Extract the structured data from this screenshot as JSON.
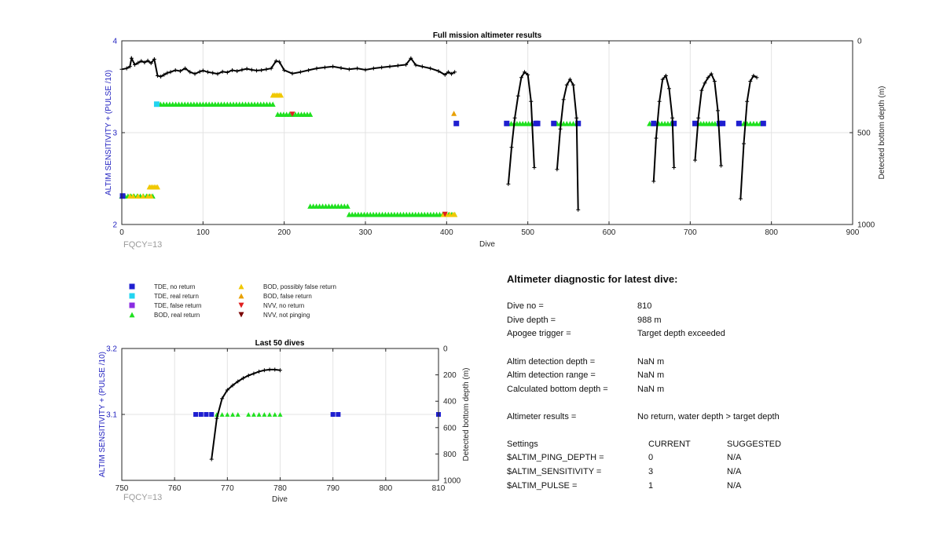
{
  "colors": {
    "tde_no_return": "#1f1fd0",
    "tde_real_return": "#22d4f0",
    "tde_false_return": "#8a2be2",
    "bod_real_return": "#1fe01f",
    "bod_possibly_false": "#f0c800",
    "bod_false": "#e8a000",
    "nvv_no_return": "#e02020",
    "nvv_not_pinging": "#7a0000",
    "depth_line": "#000000",
    "left_axis": "#1f1fbf"
  },
  "legend": [
    {
      "label": "TDE, no return",
      "marker": "square",
      "color": "#1f1fd0"
    },
    {
      "label": "TDE, real return",
      "marker": "square",
      "color": "#22d4f0"
    },
    {
      "label": "TDE, false return",
      "marker": "square",
      "color": "#8a2be2"
    },
    {
      "label": "BOD, real return",
      "marker": "triangle-up",
      "color": "#1fe01f"
    },
    {
      "label": "BOD, possibly false return",
      "marker": "triangle-up",
      "color": "#f0c800"
    },
    {
      "label": "BOD, false return",
      "marker": "triangle-up",
      "color": "#e8a000"
    },
    {
      "label": "NVV, no return",
      "marker": "triangle-down",
      "color": "#e02020"
    },
    {
      "label": "NVV, not pinging",
      "marker": "triangle-down",
      "color": "#7a0000"
    }
  ],
  "chart_data": [
    {
      "type": "scatter",
      "title": "Full mission altimeter results",
      "xlabel": "Dive",
      "ylabel": "ALTIM SENSITIVITY + (PULSE /10)",
      "y2label": "Detected bottom depth (m)",
      "xlim": [
        0,
        900
      ],
      "ylim": [
        2,
        4
      ],
      "y2lim": [
        1000,
        0
      ],
      "xticks": [
        0,
        100,
        200,
        300,
        400,
        500,
        600,
        700,
        800,
        900
      ],
      "yticks": [
        2,
        3,
        4
      ],
      "y2ticks": [
        0,
        500,
        1000
      ],
      "grid": true,
      "annotation": "FQCY=13",
      "series": [
        {
          "marker": "triangle-up",
          "color": "#1fe01f",
          "y": 3.1,
          "ranges": [
            [
              476,
              508
            ],
            [
              536,
              560
            ],
            [
              650,
              680
            ],
            [
              706,
              734
            ],
            [
              762,
              786
            ]
          ]
        },
        {
          "marker": "triangle-up",
          "color": "#1fe01f",
          "y": 3.31,
          "ranges": [
            [
              44,
              186
            ]
          ]
        },
        {
          "marker": "triangle-up",
          "color": "#1fe01f",
          "y": 3.2,
          "ranges": [
            [
              192,
              232
            ]
          ]
        },
        {
          "marker": "triangle-up",
          "color": "#1fe01f",
          "y": 2.31,
          "ranges": [
            [
              0,
              38
            ]
          ]
        },
        {
          "marker": "triangle-up",
          "color": "#1fe01f",
          "y": 2.2,
          "ranges": [
            [
              232,
              278
            ]
          ]
        },
        {
          "marker": "triangle-up",
          "color": "#1fe01f",
          "y": 2.11,
          "ranges": [
            [
              280,
              410
            ]
          ]
        },
        {
          "marker": "triangle-up",
          "color": "#f0c800",
          "y": 3.41,
          "points": [
            186,
            188,
            190,
            192,
            194,
            196
          ]
        },
        {
          "marker": "triangle-up",
          "color": "#f0c800",
          "y": 2.41,
          "points": [
            34,
            36,
            38,
            40,
            42,
            44
          ]
        },
        {
          "marker": "triangle-up",
          "color": "#f0c800",
          "y": 2.31,
          "points": [
            10,
            14,
            20,
            26,
            32,
            36
          ]
        },
        {
          "marker": "triangle-up",
          "color": "#f0c800",
          "y": 2.11,
          "points": [
            396,
            400,
            404,
            408,
            410
          ]
        },
        {
          "marker": "triangle-up",
          "color": "#e8a000",
          "y": 3.21,
          "points": [
            409
          ]
        },
        {
          "marker": "triangle-down",
          "color": "#e02020",
          "y": 3.2,
          "points": [
            210
          ]
        },
        {
          "marker": "triangle-down",
          "color": "#e02020",
          "y": 2.11,
          "points": [
            398
          ]
        },
        {
          "marker": "square",
          "color": "#22d4f0",
          "y": 3.31,
          "points": [
            43
          ]
        },
        {
          "marker": "square",
          "color": "#1f1fd0",
          "y": 3.1,
          "points": [
            412,
            474,
            510,
            512,
            532,
            562,
            655,
            680,
            706,
            736,
            740,
            760,
            790
          ]
        },
        {
          "marker": "square",
          "color": "#1f1fd0",
          "y": 2.31,
          "points": [
            1
          ]
        }
      ],
      "depth_line": {
        "x": [
          0,
          6,
          10,
          12,
          16,
          20,
          24,
          28,
          32,
          36,
          40,
          44,
          48,
          52,
          56,
          60,
          66,
          72,
          78,
          84,
          90,
          96,
          100,
          106,
          112,
          118,
          124,
          130,
          136,
          142,
          148,
          154,
          160,
          166,
          172,
          178,
          184,
          190,
          194,
          200,
          210,
          220,
          230,
          240,
          250,
          260,
          270,
          280,
          290,
          300,
          310,
          320,
          330,
          340,
          350,
          356,
          362,
          370,
          380,
          390,
          398,
          402,
          406,
          410
        ],
        "depth": [
          155,
          150,
          140,
          95,
          130,
          120,
          110,
          118,
          108,
          122,
          100,
          190,
          195,
          185,
          175,
          170,
          160,
          165,
          150,
          170,
          180,
          168,
          162,
          170,
          175,
          180,
          168,
          172,
          160,
          165,
          158,
          152,
          158,
          162,
          160,
          155,
          150,
          110,
          115,
          160,
          178,
          170,
          160,
          150,
          145,
          140,
          148,
          155,
          150,
          158,
          150,
          145,
          140,
          135,
          130,
          95,
          132,
          140,
          150,
          165,
          185,
          170,
          180,
          170
        ]
      },
      "dive_profiles": [
        {
          "x": [
            476,
            480,
            484,
            488,
            492,
            496,
            500,
            504,
            508
          ],
          "depth": [
            780,
            580,
            420,
            300,
            200,
            170,
            185,
            330,
            690
          ]
        },
        {
          "x": [
            536,
            540,
            544,
            548,
            552,
            556,
            560,
            562
          ],
          "depth": [
            700,
            480,
            320,
            240,
            210,
            240,
            420,
            920
          ]
        },
        {
          "x": [
            655,
            658,
            662,
            666,
            670,
            674,
            678,
            680
          ],
          "depth": [
            765,
            530,
            330,
            210,
            190,
            260,
            420,
            690
          ]
        },
        {
          "x": [
            706,
            710,
            714,
            718,
            722,
            726,
            730,
            734,
            738
          ],
          "depth": [
            650,
            420,
            270,
            230,
            200,
            180,
            220,
            380,
            680
          ]
        },
        {
          "x": [
            762,
            766,
            770,
            774,
            778,
            782
          ],
          "depth": [
            860,
            560,
            330,
            220,
            190,
            200
          ]
        }
      ]
    },
    {
      "type": "scatter",
      "title": "Last 50 dives",
      "xlabel": "Dive",
      "ylabel": "ALTIM SENSITIVITY + (PULSE /10)",
      "y2label": "Detected bottom depth (m)",
      "xlim": [
        750,
        810
      ],
      "ylim": [
        3.0,
        3.2
      ],
      "y2lim": [
        1000,
        0
      ],
      "xticks": [
        750,
        760,
        770,
        780,
        790,
        800,
        810
      ],
      "yticks": [
        3.1,
        3.2
      ],
      "y2ticks": [
        0,
        200,
        400,
        600,
        800,
        1000
      ],
      "grid": true,
      "annotation": "FQCY=13",
      "series": [
        {
          "marker": "square",
          "color": "#1f1fd0",
          "y": 3.1,
          "points": [
            764,
            765,
            766,
            767,
            790,
            791,
            810
          ]
        },
        {
          "marker": "triangle-up",
          "color": "#1fe01f",
          "y": 3.1,
          "points": [
            768,
            769,
            770,
            771,
            772,
            774,
            775,
            776,
            777,
            778,
            779,
            780
          ]
        }
      ],
      "depth_line": {
        "x": [
          767,
          768,
          769,
          770,
          771,
          772,
          773,
          774,
          775,
          776,
          777,
          778,
          779,
          780
        ],
        "depth": [
          840,
          530,
          380,
          315,
          280,
          250,
          225,
          205,
          190,
          175,
          165,
          160,
          160,
          165
        ]
      }
    }
  ],
  "diagnostic": {
    "title": "Altimeter diagnostic for latest dive:",
    "rows": [
      {
        "label": "Dive no =",
        "value": "810"
      },
      {
        "label": "Dive depth =",
        "value": "988 m"
      },
      {
        "label": "Apogee trigger =",
        "value": "Target depth exceeded"
      },
      {
        "label": "Altim detection depth =",
        "value": "NaN m"
      },
      {
        "label": "Altim detection range =",
        "value": "NaN m"
      },
      {
        "label": "Calculated bottom depth =",
        "value": "NaN m"
      },
      {
        "label": "Altimeter results =",
        "value": "No return, water depth > target depth"
      }
    ],
    "settings_header": {
      "label": "Settings",
      "current": "CURRENT",
      "suggested": "SUGGESTED"
    },
    "settings": [
      {
        "label": "$ALTIM_PING_DEPTH =",
        "current": "0",
        "suggested": "N/A"
      },
      {
        "label": "$ALTIM_SENSITIVITY =",
        "current": "3",
        "suggested": "N/A"
      },
      {
        "label": "$ALTIM_PULSE =",
        "current": "1",
        "suggested": "N/A"
      }
    ]
  }
}
